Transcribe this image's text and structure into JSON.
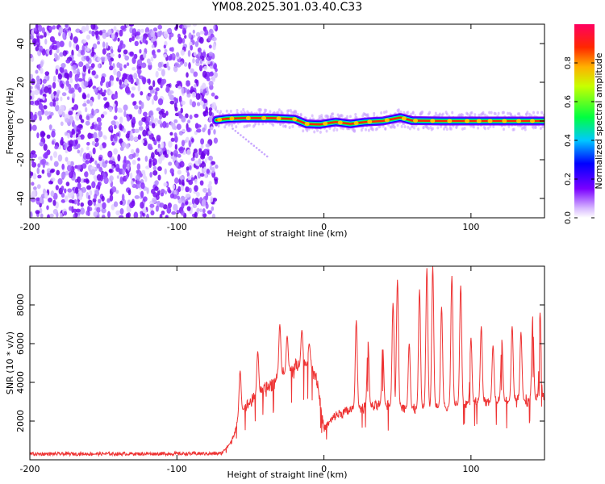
{
  "title": "YM08.2025.301.03.40.C33",
  "chart_data": [
    {
      "type": "heatmap",
      "name": "spectrogram",
      "xlabel": "Height of straight line (km)",
      "ylabel": "Frequency (Hz)",
      "xlim": [
        -200,
        150
      ],
      "ylim": [
        -50,
        50
      ],
      "xticks": [
        -200,
        -100,
        0,
        100
      ],
      "yticks": [
        -40,
        -20,
        0,
        20,
        40
      ],
      "noise_region_km": [
        -200,
        -73
      ],
      "signal": {
        "start_km": -73,
        "points": [
          {
            "x": -73,
            "y": 0.5
          },
          {
            "x": -66,
            "y": 1.2
          },
          {
            "x": -55,
            "y": 1.5
          },
          {
            "x": -35,
            "y": 1.5
          },
          {
            "x": -20,
            "y": 1.0
          },
          {
            "x": -12,
            "y": -1.5
          },
          {
            "x": -3,
            "y": -1.8
          },
          {
            "x": 8,
            "y": -0.5
          },
          {
            "x": 18,
            "y": -1.5
          },
          {
            "x": 28,
            "y": -0.5
          },
          {
            "x": 40,
            "y": 0.0
          },
          {
            "x": 52,
            "y": 1.8
          },
          {
            "x": 60,
            "y": 0.2
          },
          {
            "x": 80,
            "y": 0.0
          },
          {
            "x": 100,
            "y": 0.0
          },
          {
            "x": 150,
            "y": 0.0
          }
        ]
      },
      "colorbar": {
        "label": "Normalized spectral amplitude",
        "range": [
          0,
          1
        ],
        "ticks": [
          "0.0",
          "0.2",
          "0.4",
          "0.6",
          "0.8"
        ]
      }
    },
    {
      "type": "line",
      "name": "snr",
      "xlabel": "Height of straight line (km)",
      "ylabel": "SNR (10 * v/v)",
      "xlim": [
        -200,
        150
      ],
      "ylim": [
        0,
        10000
      ],
      "xticks": [
        -200,
        -100,
        0,
        100
      ],
      "yticks": [
        2000,
        4000,
        6000,
        8000
      ],
      "color": "#ee3333",
      "noise_level": 300,
      "baseline": [
        {
          "x": -200,
          "y": 300
        },
        {
          "x": -70,
          "y": 320
        },
        {
          "x": -63,
          "y": 900
        },
        {
          "x": -57,
          "y": 2400
        },
        {
          "x": -50,
          "y": 3000
        },
        {
          "x": -40,
          "y": 3600
        },
        {
          "x": -30,
          "y": 4300
        },
        {
          "x": -20,
          "y": 4700
        },
        {
          "x": -10,
          "y": 4900
        },
        {
          "x": -5,
          "y": 4300
        },
        {
          "x": 0,
          "y": 1600
        },
        {
          "x": 8,
          "y": 2300
        },
        {
          "x": 20,
          "y": 2600
        },
        {
          "x": 40,
          "y": 2800
        },
        {
          "x": 60,
          "y": 2600
        },
        {
          "x": 80,
          "y": 2700
        },
        {
          "x": 100,
          "y": 2900
        },
        {
          "x": 120,
          "y": 3000
        },
        {
          "x": 150,
          "y": 3100
        }
      ],
      "peaks": [
        {
          "x": -57,
          "y": 4600
        },
        {
          "x": -45,
          "y": 5600
        },
        {
          "x": -30,
          "y": 7000
        },
        {
          "x": -25,
          "y": 6400
        },
        {
          "x": -15,
          "y": 6700
        },
        {
          "x": -10,
          "y": 6000
        },
        {
          "x": 22,
          "y": 7200
        },
        {
          "x": 30,
          "y": 6100
        },
        {
          "x": 40,
          "y": 5900
        },
        {
          "x": 47,
          "y": 8100
        },
        {
          "x": 50,
          "y": 9300
        },
        {
          "x": 58,
          "y": 6000
        },
        {
          "x": 65,
          "y": 8800
        },
        {
          "x": 70,
          "y": 9900
        },
        {
          "x": 74,
          "y": 10000
        },
        {
          "x": 80,
          "y": 7900
        },
        {
          "x": 87,
          "y": 9500
        },
        {
          "x": 93,
          "y": 9000
        },
        {
          "x": 100,
          "y": 6300
        },
        {
          "x": 107,
          "y": 6900
        },
        {
          "x": 115,
          "y": 5900
        },
        {
          "x": 121,
          "y": 6200
        },
        {
          "x": 128,
          "y": 6900
        },
        {
          "x": 134,
          "y": 6600
        },
        {
          "x": 142,
          "y": 7400
        },
        {
          "x": 147,
          "y": 7600
        }
      ]
    }
  ]
}
